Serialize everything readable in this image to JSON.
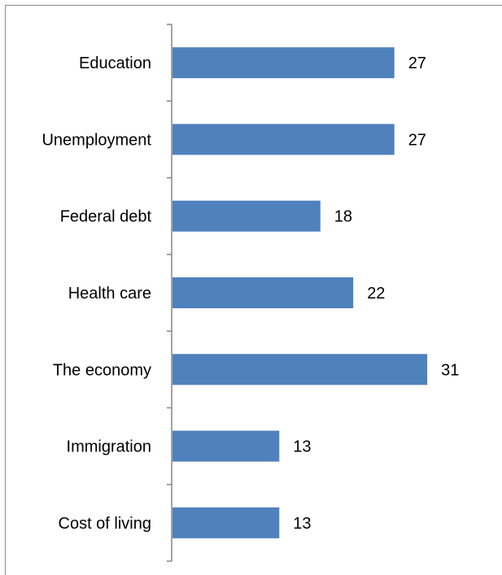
{
  "chart_data": {
    "type": "bar",
    "orientation": "horizontal",
    "categories": [
      "Education",
      "Unemployment",
      "Federal debt",
      "Health care",
      "The economy",
      "Immigration",
      "Cost of living"
    ],
    "values": [
      27,
      27,
      18,
      22,
      31,
      13,
      13
    ],
    "title": "",
    "xlabel": "",
    "ylabel": "",
    "xlim": [
      0,
      35
    ],
    "grid": false,
    "legend": "none",
    "data_labels": true,
    "bar_color": "#4f81bd",
    "axis_color": "#868686"
  }
}
